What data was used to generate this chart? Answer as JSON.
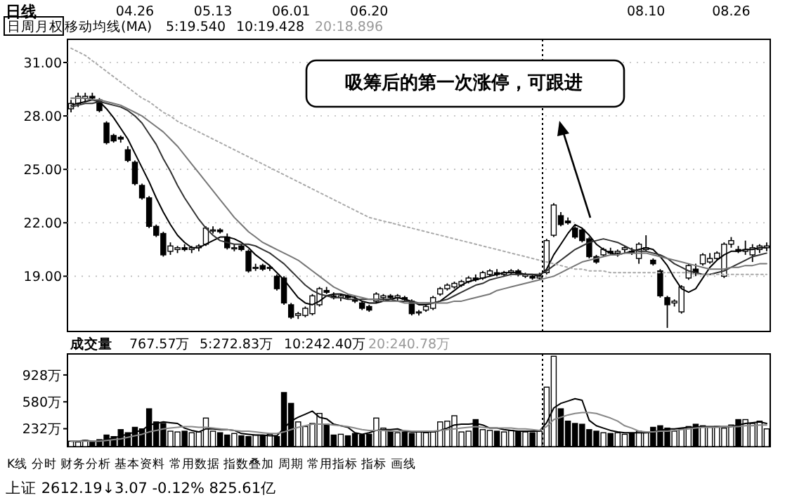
{
  "chart_data": [
    {
      "type": "candlestick",
      "title": "日线",
      "categories": [
        null,
        null,
        null,
        null,
        null,
        null,
        null,
        null,
        null,
        "04.26",
        null,
        null,
        null,
        null,
        null,
        null,
        null,
        null,
        null,
        null,
        "05.13",
        null,
        null,
        null,
        null,
        null,
        null,
        null,
        null,
        null,
        null,
        "06.01",
        null,
        null,
        null,
        null,
        null,
        null,
        null,
        null,
        null,
        null,
        "06.20",
        null,
        null,
        null,
        null,
        null,
        null,
        null,
        null,
        null,
        null,
        null,
        null,
        null,
        null,
        null,
        null,
        null,
        null,
        null,
        null,
        null,
        null,
        null,
        null,
        null,
        null,
        null,
        null,
        null,
        null,
        null,
        null,
        null,
        null,
        null,
        null,
        null,
        null,
        "08.10",
        null,
        null,
        null,
        null,
        null,
        null,
        null,
        null,
        null,
        null,
        null,
        "08.26",
        null,
        null,
        null,
        null,
        null
      ],
      "ohlc": [
        [
          28.4,
          28.9,
          28.2,
          28.7
        ],
        [
          28.7,
          29.3,
          28.5,
          29.1
        ],
        [
          29.0,
          29.3,
          28.8,
          29.1
        ],
        [
          29.1,
          29.3,
          28.9,
          29.0
        ],
        [
          28.9,
          29.0,
          28.2,
          28.3
        ],
        [
          27.6,
          27.7,
          26.4,
          26.5
        ],
        [
          26.9,
          27.0,
          26.5,
          26.6
        ],
        [
          26.8,
          26.9,
          26.5,
          26.7
        ],
        [
          26.1,
          26.3,
          25.4,
          25.5
        ],
        [
          25.4,
          25.5,
          24.1,
          24.2
        ],
        [
          24.1,
          24.2,
          23.3,
          23.4
        ],
        [
          23.4,
          23.5,
          21.7,
          21.8
        ],
        [
          21.8,
          21.9,
          21.2,
          21.3
        ],
        [
          21.4,
          21.5,
          20.1,
          20.2
        ],
        [
          20.4,
          20.9,
          20.2,
          20.7
        ],
        [
          20.5,
          20.7,
          20.3,
          20.6
        ],
        [
          20.6,
          20.8,
          20.4,
          20.5
        ],
        [
          20.5,
          20.7,
          20.3,
          20.6
        ],
        [
          20.6,
          20.8,
          20.4,
          20.7
        ],
        [
          20.8,
          21.8,
          20.7,
          21.7
        ],
        [
          21.6,
          21.8,
          21.4,
          21.6
        ],
        [
          21.6,
          21.7,
          21.4,
          21.5
        ],
        [
          21.2,
          21.4,
          20.5,
          20.6
        ],
        [
          20.6,
          20.8,
          20.4,
          20.6
        ],
        [
          20.7,
          20.8,
          20.4,
          20.5
        ],
        [
          20.4,
          20.5,
          19.2,
          19.3
        ],
        [
          19.5,
          19.7,
          19.3,
          19.5
        ],
        [
          19.6,
          19.7,
          19.3,
          19.4
        ],
        [
          19.5,
          19.6,
          19.3,
          19.5
        ],
        [
          19.0,
          19.1,
          18.2,
          18.3
        ],
        [
          18.9,
          19.0,
          17.4,
          17.5
        ],
        [
          17.4,
          17.5,
          16.6,
          16.7
        ],
        [
          16.8,
          17.0,
          16.6,
          16.9
        ],
        [
          16.8,
          17.3,
          16.7,
          17.2
        ],
        [
          16.9,
          18.0,
          16.8,
          17.9
        ],
        [
          17.4,
          18.4,
          17.3,
          18.3
        ],
        [
          18.2,
          18.4,
          18.0,
          18.1
        ],
        [
          17.9,
          18.1,
          17.7,
          17.8
        ],
        [
          17.8,
          18.0,
          17.6,
          17.9
        ],
        [
          17.9,
          18.0,
          17.7,
          17.8
        ],
        [
          17.7,
          17.9,
          17.5,
          17.6
        ],
        [
          17.5,
          17.6,
          17.1,
          17.2
        ],
        [
          17.3,
          17.4,
          17.0,
          17.1
        ],
        [
          17.6,
          18.1,
          17.5,
          18.0
        ],
        [
          17.8,
          18.0,
          17.6,
          17.9
        ],
        [
          17.9,
          18.0,
          17.7,
          17.8
        ],
        [
          17.8,
          18.0,
          17.6,
          17.9
        ],
        [
          17.8,
          17.9,
          17.6,
          17.7
        ],
        [
          17.6,
          17.7,
          16.8,
          16.9
        ],
        [
          17.0,
          17.1,
          16.8,
          17.0
        ],
        [
          17.1,
          17.4,
          17.0,
          17.3
        ],
        [
          17.2,
          17.9,
          17.1,
          17.8
        ],
        [
          18.0,
          18.4,
          17.9,
          18.3
        ],
        [
          18.3,
          18.6,
          18.2,
          18.5
        ],
        [
          18.4,
          18.7,
          18.3,
          18.6
        ],
        [
          18.5,
          18.8,
          18.4,
          18.7
        ],
        [
          18.7,
          19.0,
          18.6,
          18.9
        ],
        [
          18.9,
          19.1,
          18.7,
          18.8
        ],
        [
          18.9,
          19.3,
          18.8,
          19.2
        ],
        [
          19.1,
          19.4,
          19.0,
          19.3
        ],
        [
          19.2,
          19.4,
          19.0,
          19.1
        ],
        [
          19.1,
          19.3,
          19.0,
          19.2
        ],
        [
          19.2,
          19.4,
          19.1,
          19.3
        ],
        [
          19.3,
          19.4,
          19.0,
          19.1
        ],
        [
          19.0,
          19.2,
          18.9,
          19.1
        ],
        [
          19.0,
          19.1,
          18.8,
          18.9
        ],
        [
          18.9,
          19.2,
          18.8,
          19.0
        ],
        [
          19.2,
          21.1,
          19.1,
          21.0
        ],
        [
          21.3,
          23.1,
          21.2,
          23.0
        ],
        [
          22.4,
          22.6,
          21.8,
          21.9
        ],
        [
          22.1,
          22.3,
          21.9,
          22.0
        ],
        [
          21.7,
          21.8,
          21.1,
          21.2
        ],
        [
          21.6,
          21.7,
          20.9,
          21.0
        ],
        [
          21.1,
          21.2,
          20.0,
          20.1
        ],
        [
          20.1,
          20.2,
          19.7,
          19.8
        ],
        [
          20.2,
          20.6,
          20.1,
          20.5
        ],
        [
          20.4,
          20.6,
          20.2,
          20.3
        ],
        [
          20.3,
          20.5,
          20.1,
          20.4
        ],
        [
          20.5,
          20.7,
          20.3,
          20.6
        ],
        [
          20.4,
          20.6,
          20.2,
          20.3
        ],
        [
          20.0,
          20.9,
          19.7,
          20.8
        ],
        [
          20.5,
          21.3,
          20.4,
          20.6
        ],
        [
          19.9,
          20.0,
          19.6,
          19.7
        ],
        [
          19.3,
          19.4,
          17.8,
          17.9
        ],
        [
          17.8,
          17.9,
          16.1,
          17.4
        ],
        [
          17.5,
          17.7,
          17.3,
          17.6
        ],
        [
          17.0,
          18.5,
          16.9,
          18.4
        ],
        [
          18.9,
          19.7,
          18.8,
          19.6
        ],
        [
          19.4,
          19.7,
          19.0,
          19.2
        ],
        [
          19.7,
          20.3,
          19.6,
          20.2
        ],
        [
          19.8,
          20.3,
          19.7,
          20.0
        ],
        [
          20.0,
          20.4,
          19.9,
          20.3
        ],
        [
          19.0,
          20.9,
          18.9,
          20.8
        ],
        [
          20.8,
          21.2,
          20.6,
          21.0
        ],
        [
          20.5,
          20.7,
          20.3,
          20.4
        ],
        [
          20.4,
          21.0,
          20.2,
          20.5
        ],
        [
          20.2,
          20.8,
          19.8,
          20.6
        ],
        [
          20.5,
          20.8,
          20.3,
          20.7
        ],
        [
          20.6,
          20.9,
          20.4,
          20.7
        ]
      ],
      "series": [
        {
          "type": "line",
          "color": "#000000",
          "line_style": "solid",
          "values": [
            28.6,
            28.7,
            28.8,
            28.9,
            28.8,
            28.4,
            27.9,
            27.3,
            26.7,
            25.9,
            25.1,
            24.3,
            23.4,
            22.6,
            21.9,
            21.3,
            20.9,
            20.6,
            20.6,
            20.8,
            21.0,
            21.2,
            21.2,
            21.1,
            20.9,
            20.6,
            20.2,
            19.9,
            19.6,
            19.2,
            18.8,
            18.3,
            17.8,
            17.5,
            17.4,
            17.6,
            17.9,
            18.0,
            18.0,
            17.9,
            17.8,
            17.6,
            17.5,
            17.5,
            17.6,
            17.7,
            17.8,
            17.7,
            17.6,
            17.4,
            17.4,
            17.5,
            17.6,
            17.9,
            18.2,
            18.5,
            18.7,
            18.8,
            18.9,
            19.0,
            19.1,
            19.2,
            19.2,
            19.2,
            19.1,
            19.1,
            19.0,
            19.4,
            20.2,
            20.8,
            21.4,
            21.9,
            21.7,
            21.3,
            20.8,
            20.5,
            20.3,
            20.2,
            20.3,
            20.4,
            20.5,
            20.6,
            20.5,
            20.1,
            19.6,
            18.9,
            18.3,
            18.1,
            18.3,
            18.9,
            19.5,
            19.9,
            20.2,
            20.4,
            20.4,
            20.5,
            20.5,
            20.6,
            20.6
          ]
        },
        {
          "type": "line",
          "color": "#333333",
          "line_style": "solid",
          "values": [
            28.5,
            28.6,
            28.7,
            28.7,
            28.8,
            28.7,
            28.6,
            28.5,
            28.3,
            28.0,
            27.6,
            27.0,
            26.4,
            25.6,
            24.9,
            24.1,
            23.4,
            22.8,
            22.2,
            21.7,
            21.3,
            21.0,
            20.9,
            20.8,
            20.8,
            20.8,
            20.7,
            20.5,
            20.3,
            20.0,
            19.7,
            19.3,
            18.9,
            18.5,
            18.2,
            18.0,
            17.9,
            17.8,
            17.8,
            17.7,
            17.7,
            17.7,
            17.7,
            17.7,
            17.7,
            17.7,
            17.6,
            17.6,
            17.6,
            17.5,
            17.5,
            17.5,
            17.6,
            17.7,
            17.9,
            18.1,
            18.3,
            18.5,
            18.6,
            18.8,
            18.9,
            19.0,
            19.1,
            19.1,
            19.1,
            19.1,
            19.1,
            19.3,
            19.6,
            19.9,
            20.2,
            20.5,
            20.7,
            20.9,
            21.0,
            21.1,
            21.0,
            20.9,
            20.7,
            20.5,
            20.4,
            20.4,
            20.3,
            20.2,
            20.0,
            19.7,
            19.5,
            19.3,
            19.2,
            19.1,
            19.1,
            19.2,
            19.3,
            19.5,
            19.7,
            19.9,
            20.1,
            20.2,
            20.3
          ]
        },
        {
          "type": "line",
          "color": "#777777",
          "line_style": "solid",
          "values": [
            29.0,
            29.0,
            29.0,
            28.9,
            28.9,
            28.8,
            28.7,
            28.6,
            28.4,
            28.2,
            28.0,
            27.7,
            27.4,
            27.1,
            26.7,
            26.3,
            25.8,
            25.3,
            24.8,
            24.3,
            23.8,
            23.3,
            22.8,
            22.3,
            21.9,
            21.5,
            21.2,
            20.9,
            20.7,
            20.5,
            20.3,
            20.1,
            19.9,
            19.6,
            19.3,
            19.0,
            18.7,
            18.4,
            18.2,
            18.0,
            17.9,
            17.8,
            17.7,
            17.7,
            17.6,
            17.6,
            17.6,
            17.5,
            17.5,
            17.5,
            17.5,
            17.5,
            17.5,
            17.5,
            17.6,
            17.6,
            17.7,
            17.8,
            17.9,
            18.0,
            18.2,
            18.3,
            18.4,
            18.5,
            18.6,
            18.7,
            18.8,
            18.9,
            19.0,
            19.2,
            19.4,
            19.6,
            19.8,
            19.9,
            20.0,
            20.1,
            20.2,
            20.2,
            20.3,
            20.3,
            20.3,
            20.3,
            20.2,
            20.1,
            20.0,
            19.9,
            19.8,
            19.7,
            19.6,
            19.5,
            19.4,
            19.4,
            19.4,
            19.5,
            19.5,
            19.6,
            19.6,
            19.7,
            19.7
          ]
        },
        {
          "type": "line",
          "color": "#aaaaaa",
          "line_style": "dotted",
          "values": [
            31.8,
            31.6,
            31.4,
            31.1,
            30.8,
            30.5,
            30.2,
            29.9,
            29.6,
            29.3,
            29.0,
            28.8,
            28.5,
            28.2,
            28.0,
            27.7,
            27.5,
            27.3,
            27.1,
            26.9,
            26.7,
            26.5,
            26.3,
            26.1,
            25.9,
            25.7,
            25.5,
            25.3,
            25.1,
            24.9,
            24.7,
            24.5,
            24.3,
            24.1,
            23.9,
            23.7,
            23.5,
            23.3,
            23.1,
            22.9,
            22.7,
            22.5,
            22.3,
            22.2,
            22.1,
            22.0,
            21.9,
            21.8,
            21.7,
            21.6,
            21.5,
            21.4,
            21.3,
            21.2,
            21.1,
            21.0,
            20.9,
            20.8,
            20.7,
            20.6,
            20.5,
            20.4,
            20.3,
            20.2,
            20.1,
            20.0,
            19.9,
            19.8,
            19.7,
            19.6,
            19.5,
            19.4,
            19.4,
            19.3,
            19.3,
            19.3,
            19.2,
            19.2,
            19.2,
            19.2,
            19.2,
            19.2,
            19.2,
            19.2,
            19.2,
            19.2,
            19.2,
            19.2,
            19.1,
            19.1,
            19.1,
            19.1,
            19.1,
            19.1,
            19.1,
            19.1,
            19.1,
            19.1,
            19.1
          ]
        }
      ],
      "ylim": [
        15.9,
        32.3
      ],
      "yticks": [
        {
          "value": 19,
          "label": "19.00"
        },
        {
          "value": 22,
          "label": "22.00"
        },
        {
          "value": 25,
          "label": "25.00"
        },
        {
          "value": 28,
          "label": "28.00"
        },
        {
          "value": 31,
          "label": "31.00"
        }
      ],
      "grid": "y",
      "annotations": [
        "日周月权",
        "移动均线(MA)",
        "5:19.540",
        "10:19.428",
        "20:18.896",
        "吸筹后的第一次涨停，可跟进",
        "K线  分时  财务分析  基本资料  常用数据  指数叠加  周期  常用指标  指标  画线",
        "上证 2612.19↓3.07 -0.12% 825.61亿"
      ]
    },
    {
      "type": "bar",
      "categories": [
        null,
        null,
        null,
        null,
        null,
        null,
        null,
        null,
        null,
        null,
        null,
        null,
        null,
        null,
        null,
        null,
        null,
        null,
        null,
        null,
        null,
        null,
        null,
        null,
        null,
        null,
        null,
        null,
        null,
        null,
        null,
        null,
        null,
        null,
        null,
        null,
        null,
        null,
        null,
        null,
        null,
        null,
        null,
        null,
        null,
        null,
        null,
        null,
        null,
        null,
        null,
        null,
        null,
        null,
        null,
        null,
        null,
        null,
        null,
        null,
        null,
        null,
        null,
        null,
        null,
        null,
        null,
        null,
        null,
        null,
        null,
        null,
        null,
        null,
        null,
        null,
        null,
        null,
        null,
        null,
        null,
        null,
        null,
        null,
        null,
        null,
        null,
        null,
        null,
        null,
        null,
        null,
        null,
        null,
        null,
        null,
        null,
        null,
        null
      ],
      "values": [
        70,
        60,
        80,
        60,
        90,
        150,
        130,
        220,
        180,
        250,
        230,
        490,
        320,
        300,
        200,
        190,
        200,
        180,
        190,
        370,
        200,
        180,
        150,
        170,
        140,
        130,
        150,
        140,
        160,
        130,
        700,
        560,
        320,
        260,
        300,
        430,
        290,
        150,
        160,
        140,
        170,
        150,
        160,
        370,
        240,
        200,
        180,
        190,
        170,
        200,
        180,
        190,
        320,
        330,
        400,
        190,
        200,
        350,
        220,
        210,
        200,
        190,
        210,
        200,
        190,
        180,
        200,
        770,
        1170,
        490,
        330,
        300,
        290,
        220,
        200,
        180,
        170,
        180,
        160,
        170,
        200,
        180,
        250,
        270,
        240,
        200,
        230,
        260,
        290,
        270,
        250,
        260,
        240,
        280,
        350,
        350,
        300,
        330,
        230
      ],
      "colors": [
        "#ffffff",
        "#ffffff",
        "#ffffff",
        "#000000",
        "#000000",
        "#000000",
        "#000000",
        "#000000",
        "#000000",
        "#000000",
        "#000000",
        "#000000",
        "#000000",
        "#000000",
        "#ffffff",
        "#ffffff",
        "#000000",
        "#ffffff",
        "#ffffff",
        "#ffffff",
        "#ffffff",
        "#000000",
        "#000000",
        "#ffffff",
        "#000000",
        "#000000",
        "#ffffff",
        "#000000",
        "#ffffff",
        "#000000",
        "#000000",
        "#000000",
        "#ffffff",
        "#ffffff",
        "#ffffff",
        "#ffffff",
        "#000000",
        "#000000",
        "#ffffff",
        "#000000",
        "#000000",
        "#000000",
        "#000000",
        "#ffffff",
        "#ffffff",
        "#000000",
        "#ffffff",
        "#000000",
        "#000000",
        "#ffffff",
        "#ffffff",
        "#ffffff",
        "#ffffff",
        "#ffffff",
        "#ffffff",
        "#ffffff",
        "#ffffff",
        "#000000",
        "#ffffff",
        "#ffffff",
        "#000000",
        "#ffffff",
        "#ffffff",
        "#000000",
        "#ffffff",
        "#000000",
        "#ffffff",
        "#ffffff",
        "#ffffff",
        "#000000",
        "#000000",
        "#000000",
        "#000000",
        "#000000",
        "#000000",
        "#ffffff",
        "#000000",
        "#ffffff",
        "#ffffff",
        "#000000",
        "#ffffff",
        "#ffffff",
        "#000000",
        "#000000",
        "#000000",
        "#ffffff",
        "#ffffff",
        "#ffffff",
        "#000000",
        "#ffffff",
        "#ffffff",
        "#ffffff",
        "#ffffff",
        "#ffffff",
        "#000000",
        "#ffffff",
        "#ffffff",
        "#ffffff",
        "#ffffff"
      ],
      "series": [
        {
          "type": "line",
          "color": "#000000",
          "line_style": "solid",
          "values": [
            70,
            70,
            80,
            70,
            70,
            90,
            110,
            140,
            160,
            190,
            210,
            280,
            300,
            320,
            310,
            300,
            240,
            210,
            190,
            230,
            230,
            220,
            220,
            210,
            170,
            160,
            150,
            150,
            140,
            140,
            240,
            330,
            380,
            420,
            460,
            380,
            360,
            290,
            270,
            250,
            180,
            160,
            180,
            210,
            220,
            220,
            230,
            200,
            190,
            190,
            190,
            190,
            210,
            240,
            280,
            290,
            290,
            300,
            280,
            240,
            240,
            220,
            210,
            200,
            200,
            200,
            200,
            310,
            500,
            560,
            590,
            620,
            600,
            340,
            270,
            240,
            210,
            190,
            180,
            180,
            180,
            180,
            190,
            210,
            230,
            230,
            240,
            250,
            250,
            260,
            260,
            260,
            260,
            260,
            280,
            300,
            310,
            320,
            300
          ]
        },
        {
          "type": "line",
          "color": "#888888",
          "line_style": "solid",
          "values": [
            70,
            70,
            70,
            70,
            70,
            80,
            90,
            100,
            120,
            140,
            160,
            190,
            210,
            230,
            240,
            250,
            260,
            260,
            250,
            250,
            240,
            230,
            220,
            210,
            200,
            200,
            190,
            180,
            170,
            170,
            190,
            220,
            250,
            270,
            290,
            290,
            290,
            280,
            270,
            260,
            240,
            220,
            210,
            210,
            210,
            200,
            200,
            210,
            200,
            200,
            200,
            200,
            210,
            220,
            230,
            240,
            250,
            260,
            250,
            240,
            240,
            240,
            240,
            230,
            230,
            220,
            210,
            260,
            350,
            380,
            410,
            430,
            440,
            440,
            430,
            400,
            370,
            330,
            270,
            240,
            200,
            190,
            190,
            200,
            200,
            210,
            220,
            230,
            240,
            250,
            250,
            250,
            260,
            260,
            260,
            270,
            270,
            280,
            280
          ]
        }
      ],
      "ylim": [
        0,
        1200
      ],
      "yticks": [
        {
          "value": 232,
          "label": "232万"
        },
        {
          "value": 580,
          "label": "580万"
        },
        {
          "value": 928,
          "label": "928万"
        }
      ],
      "annotations": [
        "成交量",
        "767.57万",
        "5:272.83万",
        "10:242.40万",
        "20:240.78万"
      ]
    }
  ]
}
